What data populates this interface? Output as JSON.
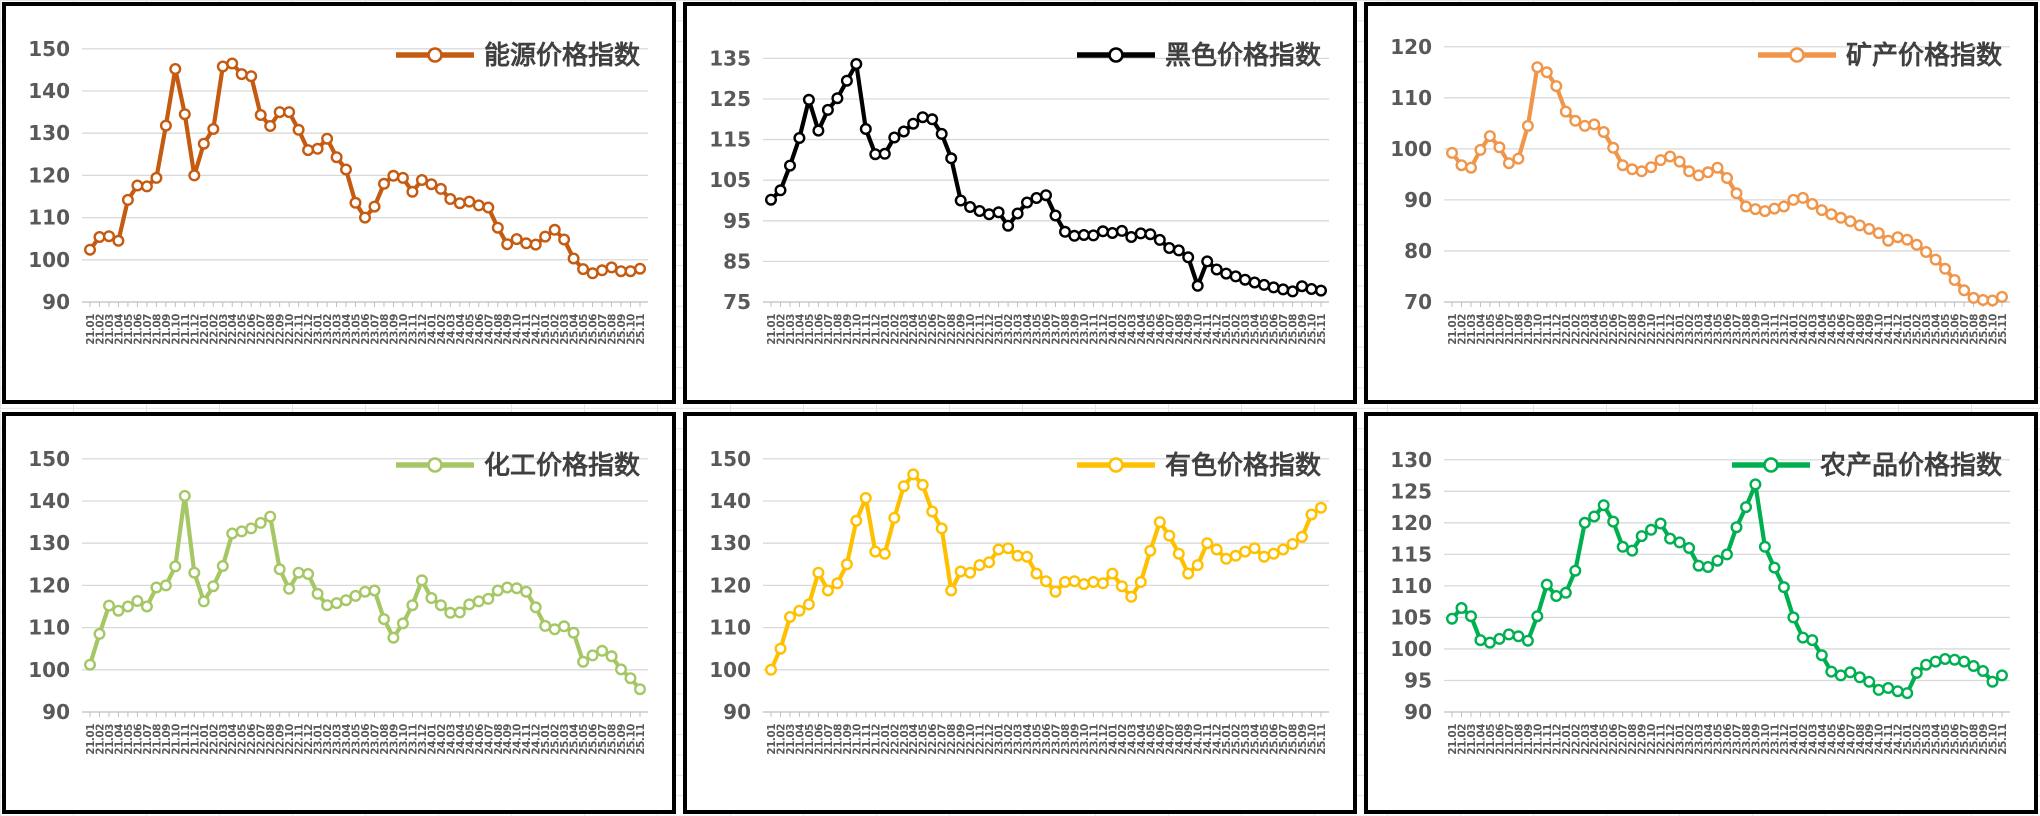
{
  "page": {
    "description_labels": {
      "unit_note": ""
    }
  },
  "categories": [
    "21.01",
    "21.02",
    "21.03",
    "21.04",
    "21.05",
    "21.06",
    "21.07",
    "21.08",
    "21.09",
    "21.10",
    "21.11",
    "21.12",
    "22.01",
    "22.02",
    "22.03",
    "22.04",
    "22.05",
    "22.06",
    "22.07",
    "22.08",
    "22.09",
    "22.10",
    "22.11",
    "22.12",
    "23.01",
    "23.02",
    "23.03",
    "23.04",
    "23.05",
    "23.06",
    "23.07",
    "23.08",
    "23.09",
    "23.10",
    "23.11",
    "23.12",
    "24.01",
    "24.02",
    "24.03",
    "24.04",
    "24.05",
    "24.06",
    "24.07",
    "24.08",
    "24.09",
    "24.10",
    "24.11",
    "24.12",
    "25.01",
    "25.02",
    "25.03",
    "25.04",
    "25.05",
    "25.06",
    "25.07",
    "25.08",
    "25.09",
    "25.10",
    "25.11"
  ],
  "chart_data": [
    {
      "type": "line",
      "title": "能源价格指数",
      "legend": "能源价格指数",
      "color": "#C55A11",
      "marker": "open-circle",
      "grid": true,
      "legend_position": "top-right",
      "yticks": [
        90,
        100,
        110,
        120,
        130,
        140,
        150
      ],
      "ylim": [
        90,
        153.5
      ],
      "xlabel": "",
      "ylabel": "",
      "values": [
        102.4,
        105.4,
        105.6,
        104.5,
        114.2,
        117.6,
        117.4,
        119.4,
        131.8,
        145.2,
        134.5,
        120.0,
        127.5,
        131.0,
        145.8,
        146.5,
        144.0,
        143.5,
        134.3,
        131.7,
        135.0,
        135.0,
        130.8,
        126.0,
        126.3,
        128.7,
        124.3,
        121.4,
        113.5,
        110.0,
        112.6,
        118.0,
        119.9,
        119.4,
        116.1,
        118.9,
        117.9,
        116.8,
        114.4,
        113.4,
        113.8,
        112.9,
        112.4,
        107.6,
        103.7,
        104.9,
        103.9,
        103.6,
        105.5,
        107.1,
        104.8,
        100.3,
        97.8,
        96.8,
        97.5,
        98.2,
        97.3,
        97.3,
        97.9
      ]
    },
    {
      "type": "line",
      "title": "黑色价格指数",
      "legend": "黑色价格指数",
      "color": "#000000",
      "marker": "open-circle",
      "grid": true,
      "legend_position": "top-right",
      "yticks": [
        75,
        85,
        95,
        105,
        115,
        125,
        135
      ],
      "ylim": [
        75,
        141
      ],
      "xlabel": "",
      "ylabel": "",
      "values": [
        100.2,
        102.5,
        108.6,
        115.4,
        124.8,
        117.2,
        122.3,
        125.2,
        129.5,
        133.6,
        117.6,
        111.4,
        111.5,
        115.5,
        117.0,
        118.9,
        120.5,
        120.0,
        116.4,
        110.4,
        100.0,
        98.4,
        97.4,
        96.6,
        97.1,
        93.8,
        96.8,
        99.5,
        100.6,
        101.3,
        96.3,
        92.3,
        91.3,
        91.5,
        91.4,
        92.4,
        92.0,
        92.5,
        91.0,
        91.9,
        91.7,
        90.3,
        88.3,
        87.7,
        86.0,
        79.0,
        85.0,
        83.0,
        82.0,
        81.3,
        80.5,
        79.8,
        79.2,
        78.6,
        78.1,
        77.6,
        78.9,
        78.2,
        77.8
      ]
    },
    {
      "type": "line",
      "title": "矿产价格指数",
      "legend": "矿产价格指数",
      "color": "#F0964B",
      "marker": "open-circle",
      "grid": true,
      "legend_position": "top-right",
      "yticks": [
        70,
        80,
        90,
        100,
        110,
        120
      ],
      "ylim": [
        70,
        122.5
      ],
      "xlabel": "",
      "ylabel": "",
      "values": [
        99.2,
        96.8,
        96.3,
        99.8,
        102.5,
        100.3,
        97.2,
        98.1,
        104.5,
        116.0,
        115.0,
        112.3,
        107.3,
        105.5,
        104.5,
        104.8,
        103.3,
        100.2,
        96.8,
        96.0,
        95.6,
        96.4,
        97.8,
        98.5,
        97.5,
        95.6,
        94.8,
        95.4,
        96.3,
        94.3,
        91.3,
        88.7,
        88.2,
        87.8,
        88.3,
        88.7,
        90.0,
        90.4,
        89.2,
        88.0,
        87.2,
        86.5,
        85.8,
        85.0,
        84.3,
        83.5,
        82.0,
        82.7,
        82.2,
        81.2,
        79.8,
        78.3,
        76.5,
        74.3,
        72.3,
        70.8,
        70.4,
        70.3,
        71.0
      ]
    },
    {
      "type": "line",
      "title": "化工价格指数",
      "legend": "化工价格指数",
      "color": "#A6C765",
      "marker": "open-circle",
      "grid": true,
      "legend_position": "top-right",
      "yticks": [
        90,
        100,
        110,
        120,
        130,
        140,
        150
      ],
      "ylim": [
        90,
        153.5
      ],
      "xlabel": "",
      "ylabel": "",
      "values": [
        101.2,
        108.5,
        115.2,
        114.0,
        115.0,
        116.3,
        115.0,
        119.5,
        120.0,
        124.5,
        141.2,
        123.0,
        116.2,
        119.8,
        124.6,
        132.3,
        132.8,
        133.5,
        134.8,
        136.3,
        123.8,
        119.2,
        123.0,
        122.7,
        118.0,
        115.3,
        115.8,
        116.5,
        117.5,
        118.5,
        118.8,
        112.0,
        107.6,
        111.0,
        115.3,
        121.2,
        117.0,
        115.3,
        113.5,
        113.6,
        115.5,
        116.2,
        116.8,
        118.8,
        119.5,
        119.3,
        118.5,
        114.8,
        110.4,
        109.6,
        110.3,
        108.8,
        101.9,
        103.4,
        104.5,
        103.2,
        100.1,
        98.0,
        95.4
      ]
    },
    {
      "type": "line",
      "title": "有色价格指数",
      "legend": "有色价格指数",
      "color": "#FFC000",
      "marker": "open-circle",
      "grid": true,
      "legend_position": "top-right",
      "yticks": [
        90,
        100,
        110,
        120,
        130,
        140,
        150
      ],
      "ylim": [
        90,
        153.5
      ],
      "xlabel": "",
      "ylabel": "",
      "values": [
        100.0,
        105.0,
        112.5,
        114.0,
        115.5,
        123.0,
        118.8,
        120.5,
        125.0,
        135.3,
        140.7,
        128.0,
        127.5,
        136.0,
        143.5,
        146.3,
        143.8,
        137.5,
        133.5,
        118.8,
        123.3,
        123.0,
        124.8,
        125.5,
        128.5,
        128.8,
        127.0,
        126.8,
        122.8,
        121.0,
        118.5,
        120.8,
        121.0,
        120.3,
        120.8,
        120.5,
        122.8,
        119.8,
        117.3,
        120.8,
        128.2,
        135.0,
        131.8,
        127.5,
        122.8,
        124.8,
        130.0,
        128.5,
        126.3,
        127.0,
        128.0,
        128.8,
        126.8,
        127.5,
        128.5,
        129.8,
        131.5,
        136.8,
        138.4
      ]
    },
    {
      "type": "line",
      "title": "农产品价格指数",
      "legend": "农产品价格指数",
      "color": "#00B050",
      "marker": "open-circle",
      "grid": true,
      "legend_position": "top-right",
      "yticks": [
        90,
        95,
        100,
        105,
        110,
        115,
        120,
        125,
        130
      ],
      "ylim": [
        90,
        132.5
      ],
      "xlabel": "",
      "ylabel": "",
      "values": [
        104.8,
        106.5,
        105.2,
        101.4,
        101.0,
        101.6,
        102.3,
        102.0,
        101.3,
        105.2,
        110.2,
        108.4,
        108.9,
        112.4,
        120.0,
        121.0,
        122.8,
        120.2,
        116.2,
        115.6,
        117.9,
        118.9,
        119.9,
        117.5,
        116.9,
        116.0,
        113.2,
        113.0,
        114.0,
        115.0,
        119.3,
        122.5,
        126.1,
        116.2,
        112.9,
        109.8,
        105.0,
        101.8,
        101.4,
        99.0,
        96.4,
        95.8,
        96.3,
        95.5,
        94.8,
        93.5,
        93.8,
        93.3,
        93.0,
        96.2,
        97.5,
        98.0,
        98.4,
        98.3,
        98.0,
        97.3,
        96.5,
        94.8,
        95.8
      ]
    }
  ]
}
